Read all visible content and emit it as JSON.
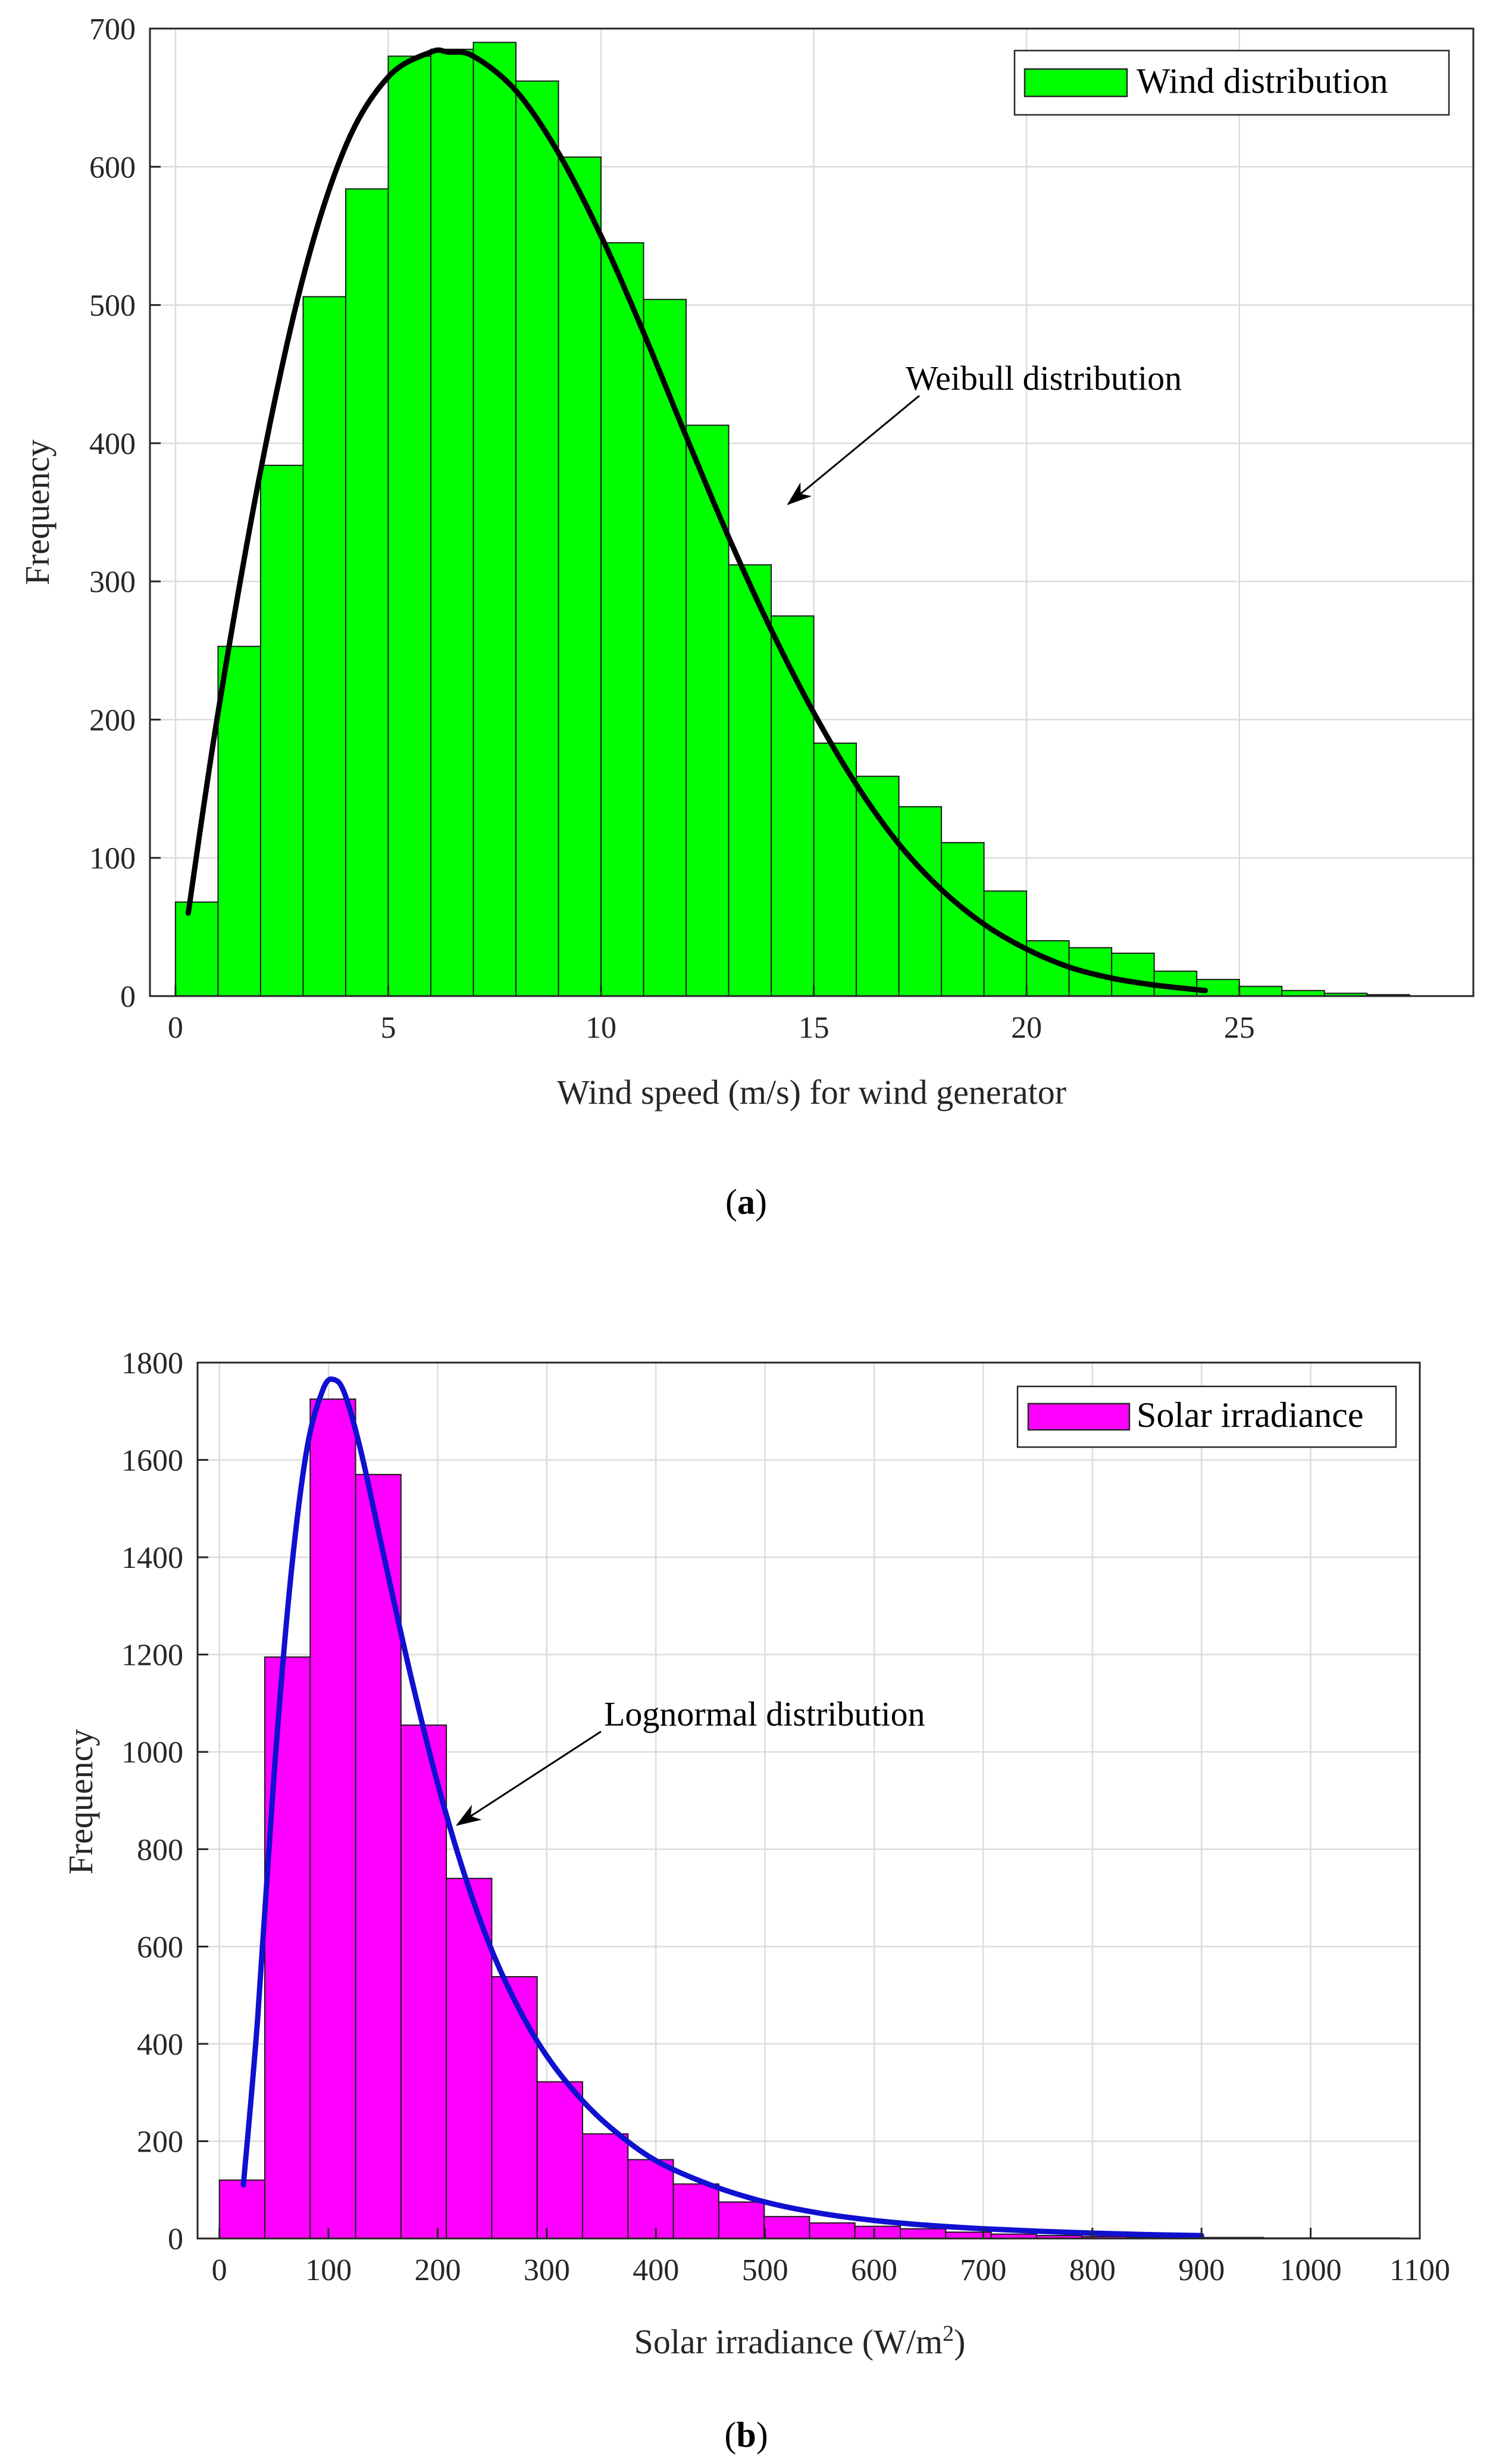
{
  "chart_data": [
    {
      "type": "bar",
      "subtype": "histogram",
      "caption": "a",
      "xlabel": "Wind speed (m/s) for wind generator",
      "ylabel": "Frequency",
      "xlim": [
        -0.6,
        30.5
      ],
      "ylim": [
        0,
        700
      ],
      "xticks": [
        0,
        5,
        10,
        15,
        20,
        25
      ],
      "yticks": [
        0,
        100,
        200,
        300,
        400,
        500,
        600,
        700
      ],
      "grid": true,
      "bar_color": "#00FF00",
      "curve_color": "#000000",
      "legend": {
        "label": "Wind distribution",
        "position": "top-right"
      },
      "bins": {
        "start": 0,
        "width": 1,
        "values": [
          68,
          253,
          384,
          506,
          584,
          680,
          685,
          690,
          662,
          607,
          545,
          504,
          413,
          312,
          275,
          183,
          159,
          137,
          111,
          76,
          40,
          35,
          31,
          18,
          12,
          7,
          4,
          2,
          1
        ]
      },
      "curve": {
        "name": "Weibull distribution",
        "x": [
          0.3,
          1,
          2,
          3,
          4,
          5,
          6,
          6.4,
          7,
          8,
          9,
          10,
          11,
          12,
          13,
          14,
          15,
          16,
          17,
          18,
          19,
          20,
          21,
          22,
          23,
          24.2
        ],
        "y": [
          60,
          205,
          380,
          520,
          615,
          665,
          683,
          683,
          680,
          655,
          610,
          550,
          480,
          405,
          332,
          265,
          205,
          153,
          110,
          77,
          52,
          34,
          21,
          13,
          8,
          4
        ]
      },
      "annotation": {
        "text": "Weibull distribution",
        "arrow_to": [
          14.4,
          356
        ]
      }
    },
    {
      "type": "bar",
      "subtype": "histogram",
      "caption": "b",
      "xlabel": "Solar irradiance (W/m",
      "xlabel_superscript": "2",
      "xlabel_suffix": ")",
      "ylabel": "Frequency",
      "xlim": [
        -20,
        1100
      ],
      "ylim": [
        0,
        1800
      ],
      "xticks": [
        0,
        100,
        200,
        300,
        400,
        500,
        600,
        700,
        800,
        900,
        1000,
        1100
      ],
      "yticks": [
        0,
        200,
        400,
        600,
        800,
        1000,
        1200,
        1400,
        1600,
        1800
      ],
      "grid": true,
      "bar_color": "#FF00FF",
      "curve_color": "#1010D0",
      "legend": {
        "label": "Solar irradiance",
        "position": "top-right"
      },
      "bins": {
        "start": 0,
        "width": 41.6,
        "values": [
          120,
          1195,
          1725,
          1570,
          1055,
          740,
          538,
          322,
          215,
          162,
          112,
          75,
          45,
          32,
          25,
          20,
          13,
          9,
          6,
          4,
          3,
          2,
          2,
          1,
          1,
          1
        ]
      },
      "curve": {
        "name": "Lognormal distribution",
        "x": [
          22,
          35,
          50,
          65,
          80,
          95,
          105,
          115,
          130,
          150,
          175,
          200,
          225,
          250,
          275,
          300,
          330,
          360,
          400,
          450,
          500,
          550,
          600,
          650,
          700,
          750,
          800,
          850,
          900
        ],
        "y": [
          110,
          450,
          950,
          1350,
          1620,
          1745,
          1765,
          1735,
          1615,
          1410,
          1160,
          935,
          745,
          590,
          470,
          375,
          290,
          225,
          160,
          110,
          75,
          52,
          37,
          27,
          20,
          15,
          11,
          8,
          6
        ]
      },
      "annotation": {
        "text": "Lognormal distribution",
        "arrow_to": [
          218,
          850
        ]
      }
    }
  ]
}
